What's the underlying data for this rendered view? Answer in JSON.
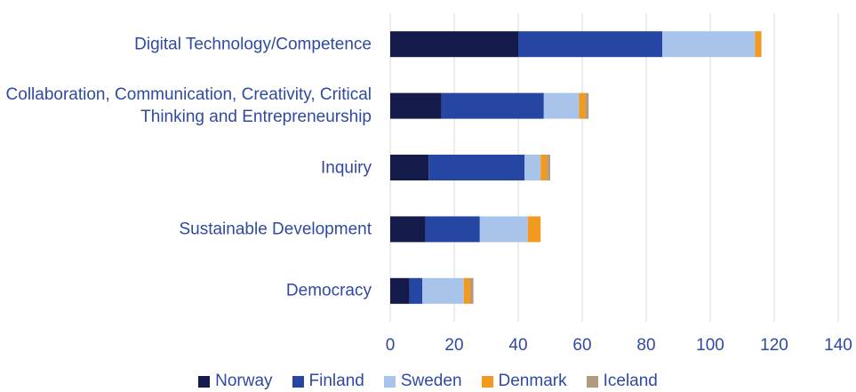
{
  "chart_data": {
    "type": "stacked-barh",
    "categories": [
      "Digital Technology/Competence",
      "Collaboration, Communication, Creativity, Critical Thinking and Entrepreneurship",
      "Inquiry",
      "Sustainable Development",
      "Democracy"
    ],
    "series": [
      {
        "name": "Norway",
        "color": "#141a4a",
        "values": [
          40,
          16,
          12,
          11,
          6
        ]
      },
      {
        "name": "Finland",
        "color": "#2546a3",
        "values": [
          45,
          32,
          30,
          17,
          4
        ]
      },
      {
        "name": "Sweden",
        "color": "#a9c4ea",
        "values": [
          29,
          11,
          5,
          15,
          13
        ]
      },
      {
        "name": "Denmark",
        "color": "#f29a1f",
        "values": [
          2,
          2,
          2,
          4,
          2
        ]
      },
      {
        "name": "Iceland",
        "color": "#b09a80",
        "values": [
          0,
          1,
          1,
          0,
          1
        ]
      }
    ],
    "xlim": [
      0,
      140
    ],
    "xticks": [
      0,
      20,
      40,
      60,
      80,
      100,
      120,
      140
    ],
    "grid": true,
    "legend": "bottom"
  }
}
